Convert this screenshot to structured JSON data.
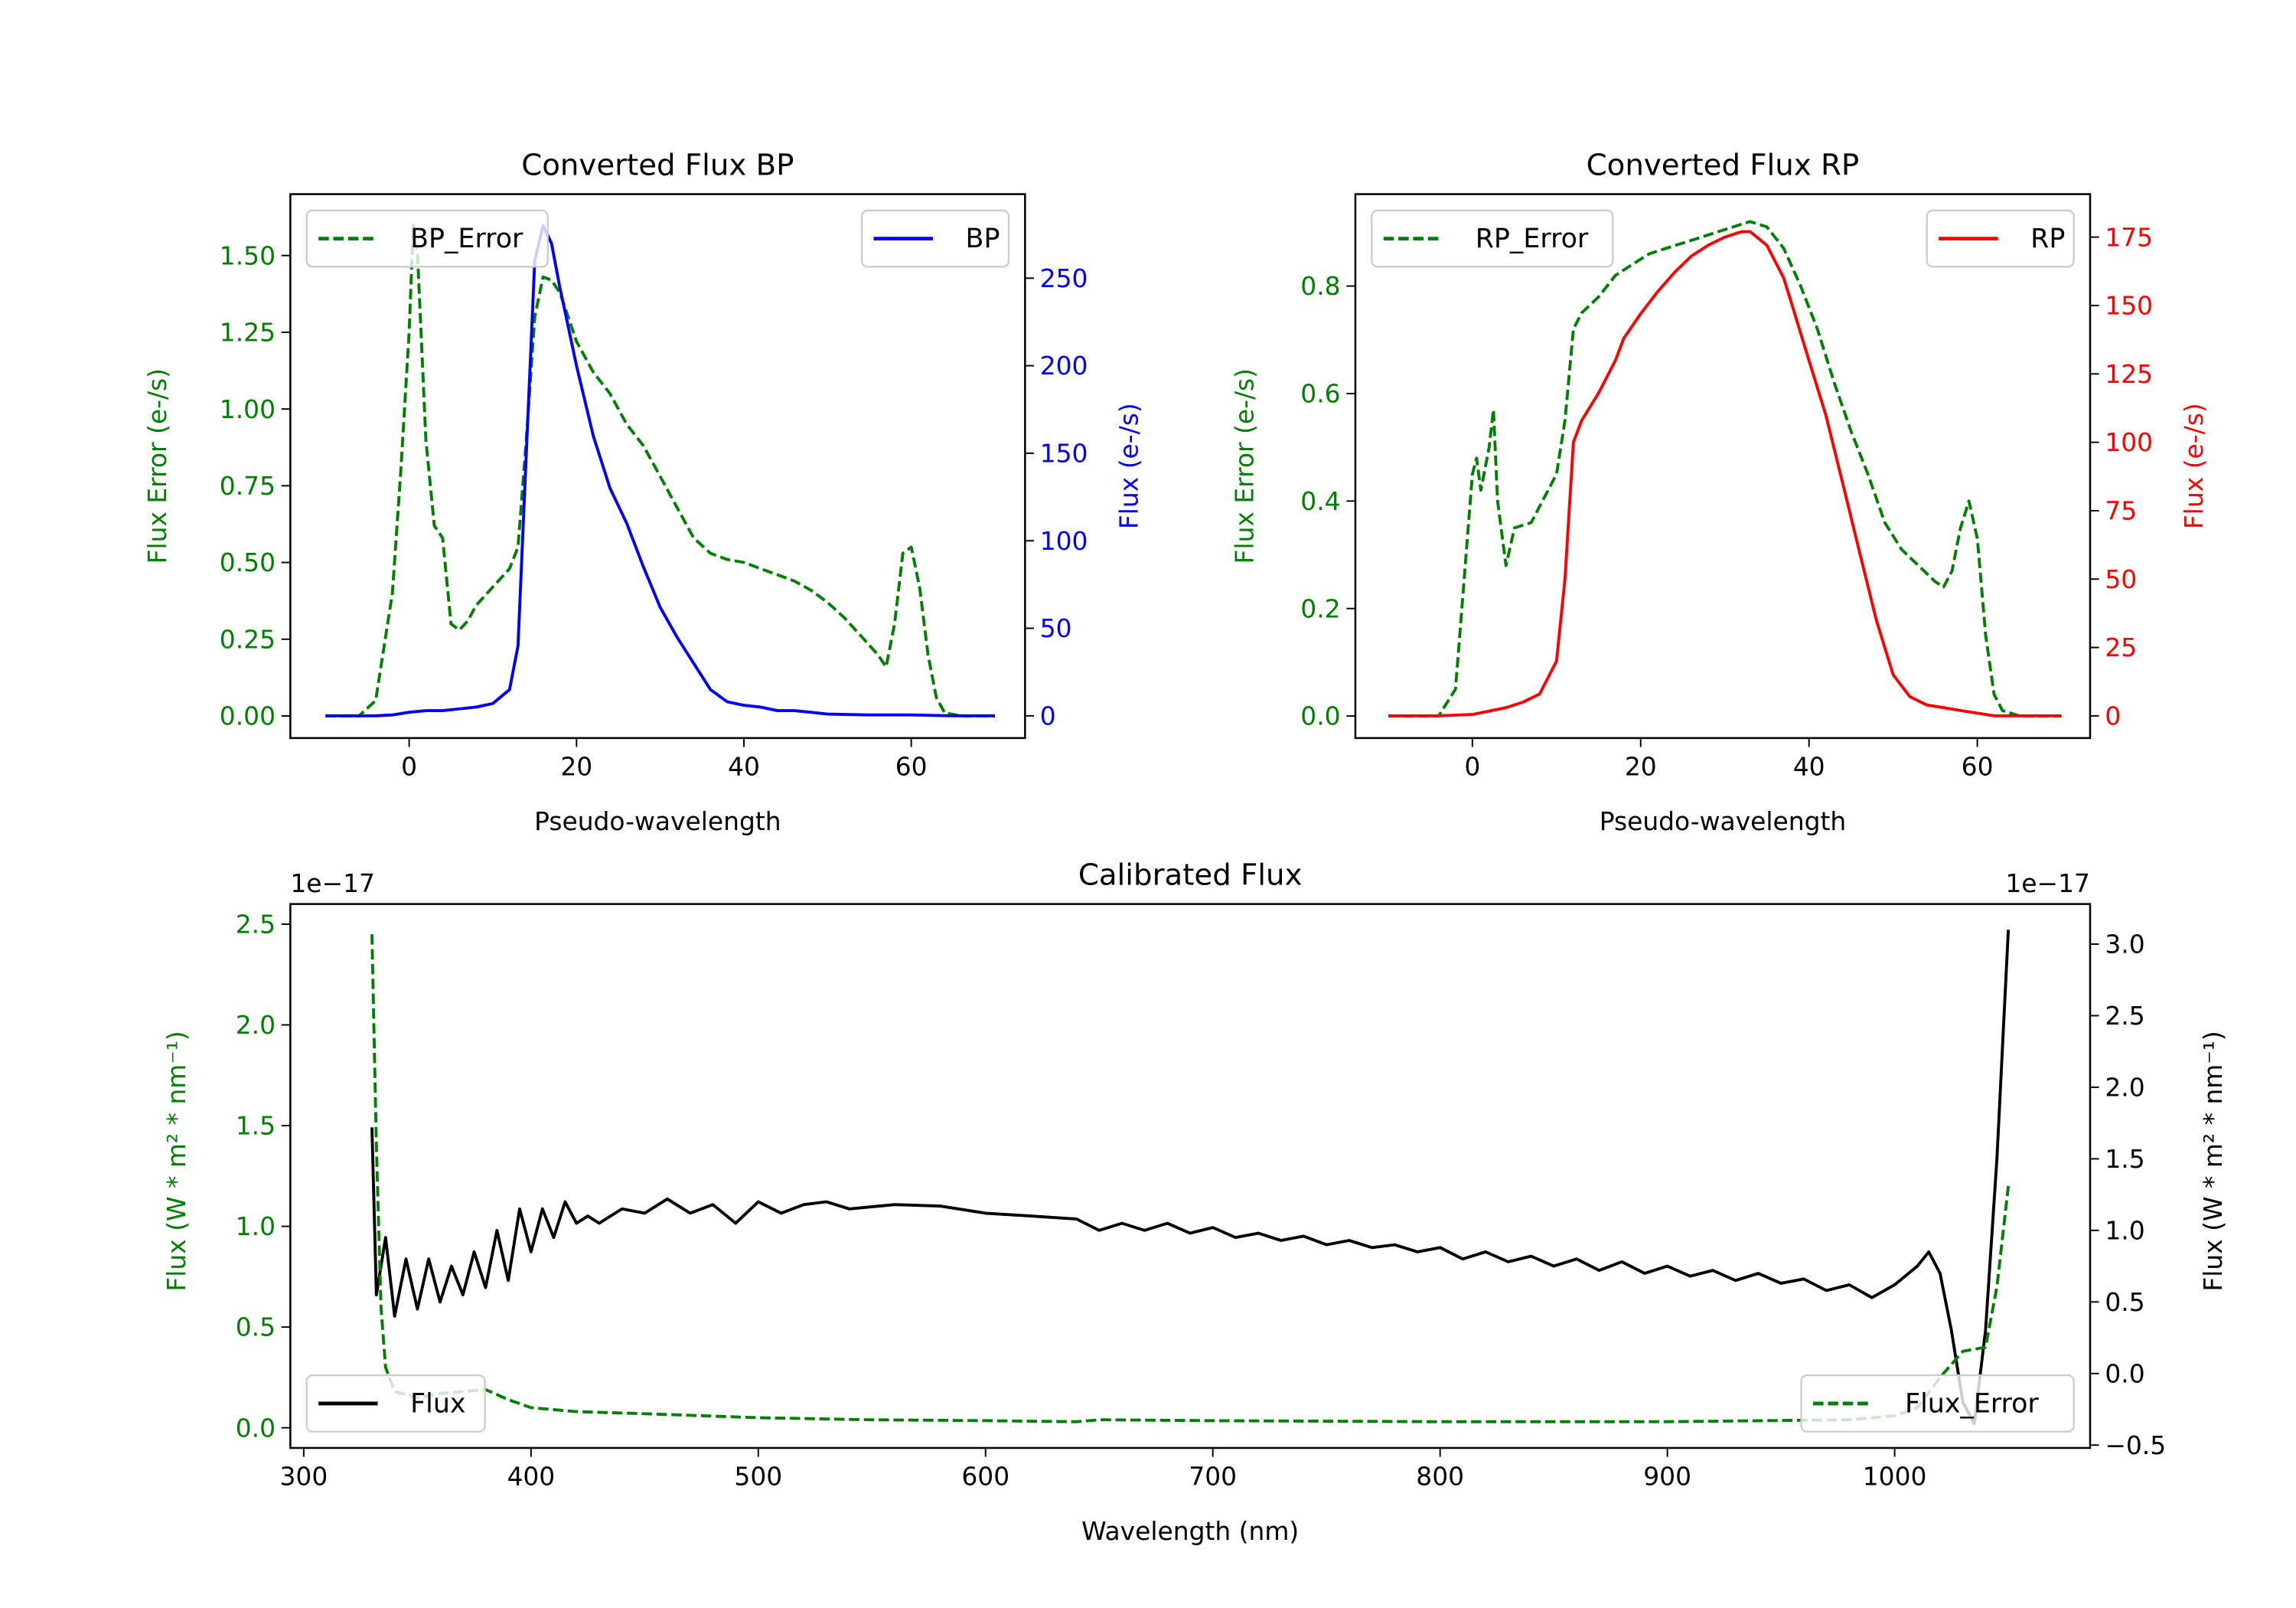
{
  "chart_data": [
    {
      "type": "line",
      "title": "Converted Flux BP",
      "xlabel": "Pseudo-wavelength",
      "x_axis": {
        "range": [
          -14.2,
          73.6
        ],
        "ticks": [
          0,
          20,
          40,
          60
        ],
        "labels": [
          "0",
          "20",
          "40",
          "60"
        ]
      },
      "y_left": {
        "label": "Flux Error (e-/s)",
        "color": "#008000",
        "range": [
          -0.072,
          1.7
        ],
        "ticks": [
          0,
          0.25,
          0.5,
          0.75,
          1.0,
          1.25,
          1.5
        ],
        "labels": [
          "0.00",
          "0.25",
          "0.50",
          "0.75",
          "1.00",
          "1.25",
          "1.50"
        ]
      },
      "y_right": {
        "label": "Flux (e-/s)",
        "color": "#0000ff",
        "range": [
          -12.7,
          298
        ],
        "ticks": [
          0,
          50,
          100,
          150,
          200,
          250
        ],
        "labels": [
          "0",
          "50",
          "100",
          "150",
          "200",
          "250"
        ]
      },
      "series": [
        {
          "name": "BP_Error",
          "axis": "left",
          "color": "#008000",
          "style": "dashed",
          "legend": "upper left",
          "x": [
            -10,
            -6,
            -4,
            -2,
            -1,
            0,
            0.5,
            1,
            2,
            3,
            4,
            5,
            6,
            7,
            8,
            10,
            12,
            13,
            14,
            15,
            16,
            17,
            18,
            20,
            22,
            24,
            26,
            28,
            30,
            32,
            34,
            36,
            38,
            40,
            42,
            44,
            46,
            48,
            50,
            52,
            54,
            56,
            57,
            58,
            59,
            60,
            61,
            62,
            63,
            64,
            66,
            70
          ],
          "y": [
            0,
            0,
            0.05,
            0.4,
            0.8,
            1.25,
            1.6,
            1.5,
            0.9,
            0.62,
            0.58,
            0.3,
            0.28,
            0.31,
            0.36,
            0.42,
            0.48,
            0.55,
            0.9,
            1.3,
            1.43,
            1.42,
            1.38,
            1.22,
            1.12,
            1.05,
            0.95,
            0.88,
            0.78,
            0.68,
            0.58,
            0.53,
            0.51,
            0.5,
            0.48,
            0.46,
            0.44,
            0.41,
            0.37,
            0.32,
            0.26,
            0.2,
            0.16,
            0.3,
            0.53,
            0.55,
            0.42,
            0.2,
            0.06,
            0.01,
            0,
            0
          ]
        },
        {
          "name": "BP",
          "axis": "right",
          "color": "#0000ff",
          "style": "solid",
          "legend": "upper right",
          "x": [
            -10,
            -8,
            -6,
            -4,
            -2,
            0,
            2,
            4,
            6,
            8,
            10,
            12,
            13,
            14,
            15,
            16,
            17,
            18,
            20,
            22,
            24,
            26,
            28,
            30,
            32,
            34,
            36,
            38,
            40,
            42,
            44,
            46,
            48,
            50,
            55,
            60,
            65,
            70
          ],
          "y": [
            0,
            0,
            0,
            0,
            0.5,
            2,
            3,
            3,
            4,
            5,
            7,
            15,
            40,
            150,
            260,
            280,
            270,
            245,
            200,
            160,
            130,
            110,
            85,
            62,
            45,
            30,
            15,
            8,
            6,
            5,
            3,
            3,
            2,
            1,
            0.5,
            0.5,
            0,
            0
          ]
        }
      ]
    },
    {
      "type": "line",
      "title": "Converted Flux RP",
      "xlabel": "Pseudo-wavelength",
      "x_axis": {
        "range": [
          -13.9,
          73.4
        ],
        "ticks": [
          0,
          20,
          40,
          60
        ],
        "labels": [
          "0",
          "20",
          "40",
          "60"
        ]
      },
      "y_left": {
        "label": "Flux Error (e-/s)",
        "color": "#008000",
        "range": [
          -0.041,
          0.971
        ],
        "ticks": [
          0,
          0.2,
          0.4,
          0.6,
          0.8
        ],
        "labels": [
          "0.0",
          "0.2",
          "0.4",
          "0.6",
          "0.8"
        ]
      },
      "y_right": {
        "label": "Flux (e-/s)",
        "color": "#ff0000",
        "range": [
          -8.1,
          190.7
        ],
        "ticks": [
          0,
          25,
          50,
          75,
          100,
          125,
          150,
          175
        ],
        "labels": [
          "0",
          "25",
          "50",
          "75",
          "100",
          "125",
          "150",
          "175"
        ]
      },
      "series": [
        {
          "name": "RP_Error",
          "axis": "left",
          "color": "#008000",
          "style": "dashed",
          "legend": "upper left",
          "x": [
            -10,
            -4,
            -2,
            -1,
            0,
            0.5,
            1,
            2,
            2.5,
            3,
            4,
            5,
            7,
            9,
            10,
            11,
            12,
            13,
            15,
            17,
            19,
            21,
            23,
            25,
            27,
            29,
            31,
            33,
            35,
            37,
            39,
            41,
            43,
            45,
            47,
            49,
            51,
            53,
            55,
            56,
            57,
            58,
            59,
            60,
            61,
            62,
            63,
            65,
            70
          ],
          "y": [
            0,
            0,
            0.05,
            0.25,
            0.45,
            0.48,
            0.42,
            0.5,
            0.57,
            0.4,
            0.28,
            0.35,
            0.36,
            0.42,
            0.45,
            0.55,
            0.72,
            0.75,
            0.78,
            0.82,
            0.84,
            0.86,
            0.87,
            0.88,
            0.89,
            0.9,
            0.91,
            0.92,
            0.91,
            0.87,
            0.8,
            0.72,
            0.62,
            0.53,
            0.45,
            0.36,
            0.31,
            0.28,
            0.25,
            0.24,
            0.27,
            0.35,
            0.4,
            0.33,
            0.15,
            0.04,
            0.01,
            0,
            0
          ]
        },
        {
          "name": "RP",
          "axis": "right",
          "color": "#ff0000",
          "style": "solid",
          "legend": "upper right",
          "x": [
            -10,
            -4,
            0,
            4,
            6,
            8,
            10,
            11,
            12,
            13,
            15,
            17,
            18,
            20,
            22,
            24,
            26,
            28,
            30,
            32,
            33,
            35,
            37,
            38,
            40,
            42,
            44,
            46,
            48,
            50,
            52,
            54,
            56,
            58,
            60,
            62,
            70
          ],
          "y": [
            0,
            0,
            0.5,
            3,
            5,
            8,
            20,
            50,
            100,
            108,
            118,
            130,
            138,
            147,
            155,
            162,
            168,
            172,
            175,
            177,
            177,
            172,
            160,
            150,
            130,
            110,
            85,
            60,
            35,
            15,
            7,
            4,
            3,
            2,
            1,
            0,
            0
          ]
        }
      ]
    },
    {
      "type": "line",
      "title": "Calibrated Flux",
      "xlabel": "Wavelength (nm)",
      "x_axis": {
        "range": [
          294.1,
          1086
        ],
        "ticks": [
          300,
          400,
          500,
          600,
          700,
          800,
          900,
          1000
        ],
        "labels": [
          "300",
          "400",
          "500",
          "600",
          "700",
          "800",
          "900",
          "1000"
        ]
      },
      "y_left": {
        "label": "Flux (W * m² * nm⁻¹)",
        "color": "#008000",
        "range": [
          -0.1,
          2.6
        ],
        "offset_text": "1e−17",
        "ticks": [
          0,
          0.5,
          1.0,
          1.5,
          2.0,
          2.5
        ],
        "labels": [
          "0.0",
          "0.5",
          "1.0",
          "1.5",
          "2.0",
          "2.5"
        ]
      },
      "y_right": {
        "label": "Flux (W * m² * nm⁻¹)",
        "color": "#000000",
        "range": [
          -0.52,
          3.28
        ],
        "offset_text": "1e−17",
        "ticks": [
          -0.5,
          0,
          0.5,
          1.0,
          1.5,
          2.0,
          2.5,
          3.0
        ],
        "labels": [
          "−0.5",
          "0.0",
          "0.5",
          "1.0",
          "1.5",
          "2.0",
          "2.5",
          "3.0"
        ]
      },
      "series": [
        {
          "name": "Flux",
          "axis": "right",
          "color": "#000000",
          "style": "solid",
          "legend": "lower left",
          "x": [
            330,
            332,
            336,
            340,
            345,
            350,
            355,
            360,
            365,
            370,
            375,
            380,
            385,
            390,
            395,
            400,
            405,
            410,
            415,
            420,
            425,
            430,
            440,
            450,
            460,
            470,
            480,
            490,
            500,
            510,
            520,
            530,
            540,
            560,
            580,
            600,
            620,
            640,
            650,
            660,
            670,
            680,
            690,
            700,
            710,
            720,
            730,
            740,
            750,
            760,
            770,
            780,
            790,
            800,
            810,
            820,
            830,
            840,
            850,
            860,
            870,
            880,
            890,
            900,
            910,
            920,
            930,
            940,
            950,
            960,
            970,
            980,
            990,
            1000,
            1010,
            1015,
            1020,
            1025,
            1030,
            1035,
            1040,
            1045,
            1050
          ],
          "y": [
            1.72,
            0.55,
            0.95,
            0.4,
            0.8,
            0.45,
            0.8,
            0.5,
            0.75,
            0.55,
            0.85,
            0.6,
            1.0,
            0.65,
            1.15,
            0.85,
            1.15,
            0.95,
            1.2,
            1.05,
            1.1,
            1.05,
            1.15,
            1.12,
            1.22,
            1.12,
            1.18,
            1.05,
            1.2,
            1.12,
            1.18,
            1.2,
            1.15,
            1.18,
            1.17,
            1.12,
            1.1,
            1.08,
            1.0,
            1.05,
            1.0,
            1.05,
            0.98,
            1.02,
            0.95,
            0.98,
            0.93,
            0.96,
            0.9,
            0.93,
            0.88,
            0.9,
            0.85,
            0.88,
            0.8,
            0.85,
            0.78,
            0.82,
            0.75,
            0.8,
            0.72,
            0.78,
            0.7,
            0.75,
            0.68,
            0.72,
            0.65,
            0.7,
            0.63,
            0.66,
            0.58,
            0.62,
            0.53,
            0.62,
            0.75,
            0.85,
            0.7,
            0.3,
            -0.2,
            -0.35,
            0.3,
            1.5,
            3.1
          ]
        },
        {
          "name": "Flux_Error",
          "axis": "left",
          "color": "#008000",
          "style": "dashed",
          "legend": "lower right",
          "x": [
            330,
            332,
            334,
            336,
            340,
            350,
            360,
            370,
            380,
            390,
            400,
            420,
            450,
            500,
            550,
            600,
            640,
            650,
            700,
            800,
            900,
            980,
            1000,
            1010,
            1020,
            1030,
            1040,
            1045,
            1050
          ],
          "y": [
            2.45,
            1.4,
            0.6,
            0.3,
            0.18,
            0.15,
            0.17,
            0.18,
            0.19,
            0.14,
            0.1,
            0.08,
            0.07,
            0.05,
            0.04,
            0.035,
            0.03,
            0.04,
            0.035,
            0.03,
            0.03,
            0.04,
            0.06,
            0.1,
            0.25,
            0.38,
            0.4,
            0.7,
            1.2
          ]
        }
      ]
    }
  ]
}
